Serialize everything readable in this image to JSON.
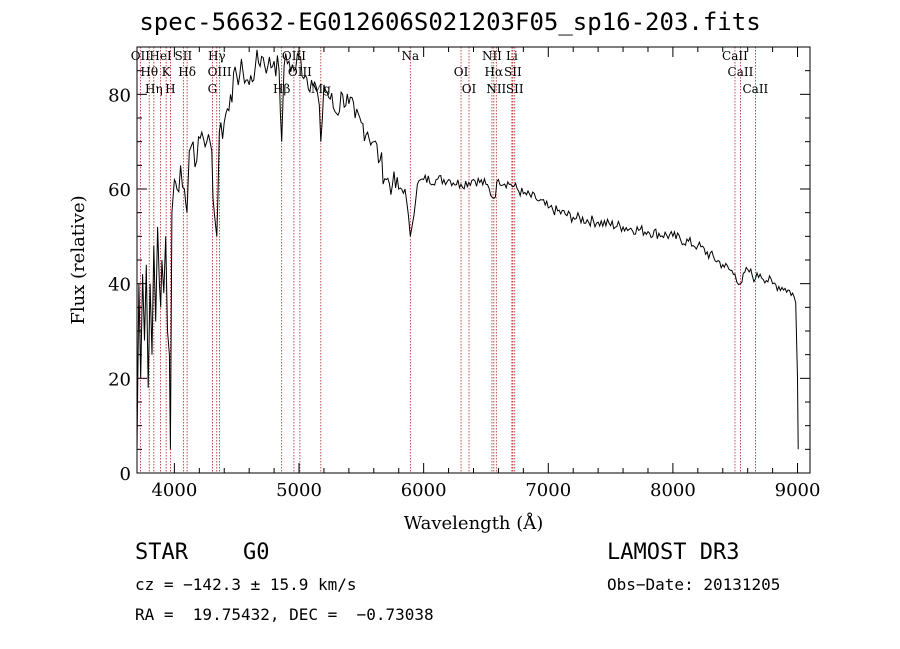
{
  "chart_data": {
    "type": "line",
    "title": "spec-56632-EG012606S021203F05_sp16-203.fits",
    "xlabel": "Wavelength (Å)",
    "ylabel": "Flux (relative)",
    "xlim": [
      3700,
      9100
    ],
    "ylim": [
      0,
      90
    ],
    "x_ticks": [
      4000,
      5000,
      6000,
      7000,
      8000,
      9000
    ],
    "y_ticks": [
      0,
      20,
      40,
      60,
      80
    ],
    "x_tick_labels": [
      "4000",
      "5000",
      "6000",
      "7000",
      "8000",
      "9000"
    ],
    "y_tick_labels": [
      "0",
      "20",
      "40",
      "60",
      "80"
    ],
    "grid": false,
    "series": [
      {
        "x": [
          3700,
          3715,
          3730,
          3745,
          3760,
          3775,
          3790,
          3805,
          3820,
          3835,
          3850,
          3865,
          3880,
          3890,
          3900,
          3915,
          3930,
          3945,
          3960,
          3968,
          3980,
          4000,
          4020,
          4050,
          4080,
          4101,
          4120,
          4150,
          4180,
          4220,
          4260,
          4300,
          4320,
          4340,
          4360,
          4400,
          4450,
          4500,
          4550,
          4600,
          4650,
          4700,
          4750,
          4800,
          4840,
          4861,
          4880,
          4920,
          4960,
          5000,
          5050,
          5100,
          5150,
          5175,
          5200,
          5250,
          5300,
          5350,
          5400,
          5450,
          5500,
          5550,
          5600,
          5650,
          5700,
          5750,
          5800,
          5850,
          5893,
          5950,
          6000,
          6100,
          6200,
          6300,
          6400,
          6500,
          6563,
          6600,
          6700,
          6800,
          6900,
          7000,
          7200,
          7400,
          7600,
          7800,
          8000,
          8200,
          8400,
          8498,
          8542,
          8600,
          8662,
          8700,
          8800,
          8900,
          8960,
          8985,
          9000,
          9005
        ],
        "y": [
          5,
          40,
          20,
          42,
          28,
          44,
          18,
          40,
          25,
          48,
          32,
          52,
          40,
          35,
          45,
          38,
          50,
          30,
          25,
          5,
          55,
          62,
          60,
          65,
          60,
          55,
          68,
          70,
          66,
          72,
          70,
          68,
          55,
          50,
          72,
          74,
          80,
          84,
          85,
          82,
          86,
          88,
          86,
          87,
          85,
          70,
          86,
          87,
          85,
          88,
          84,
          83,
          80,
          70,
          82,
          79,
          76,
          80,
          78,
          75,
          74,
          72,
          70,
          66,
          62,
          61,
          60,
          60,
          50,
          61,
          62,
          62,
          62,
          61,
          62,
          61,
          58,
          62,
          61,
          59,
          58,
          56,
          54,
          53,
          52,
          51,
          50,
          48,
          44,
          42,
          40,
          43,
          41,
          42,
          40,
          39,
          38,
          36,
          20,
          5
        ]
      }
    ],
    "lines": [
      {
        "label": "OII",
        "x": 3727
      },
      {
        "label": "Hθ",
        "x": 3798
      },
      {
        "label": "Hη",
        "x": 3835
      },
      {
        "label": "HeI",
        "x": 3889
      },
      {
        "label": "K",
        "x": 3934
      },
      {
        "label": "H",
        "x": 3968
      },
      {
        "label": "SII",
        "x": 4072
      },
      {
        "label": "Hδ",
        "x": 4102
      },
      {
        "label": "G",
        "x": 4305
      },
      {
        "label": "Hγ",
        "x": 4340
      },
      {
        "label": "OIII",
        "x": 4363
      },
      {
        "label": "Hβ",
        "x": 4861
      },
      {
        "label": "OIII",
        "x": 4959
      },
      {
        "label": "OIII",
        "x": 5007
      },
      {
        "label": "Mg",
        "x": 5175
      },
      {
        "label": "Na",
        "x": 5893
      },
      {
        "label": "OI",
        "x": 6300
      },
      {
        "label": "OI",
        "x": 6364
      },
      {
        "label": "NII",
        "x": 6548
      },
      {
        "label": "Hα",
        "x": 6563
      },
      {
        "label": "NII",
        "x": 6583
      },
      {
        "label": "Li",
        "x": 6708
      },
      {
        "label": "SII",
        "x": 6716
      },
      {
        "label": "SII",
        "x": 6731
      },
      {
        "label": "CaII",
        "x": 8498
      },
      {
        "label": "CaII",
        "x": 8542
      },
      {
        "label": "CaII",
        "x": 8662
      }
    ]
  },
  "info": {
    "object_class": "STAR",
    "subclass": "G0",
    "survey": "LAMOST DR3",
    "cz": "cz = −142.3 ± 15.9 km/s",
    "obs_date": "Obs−Date: 20131205",
    "radec": "RA =  19.75432, DEC =  −0.73038"
  }
}
